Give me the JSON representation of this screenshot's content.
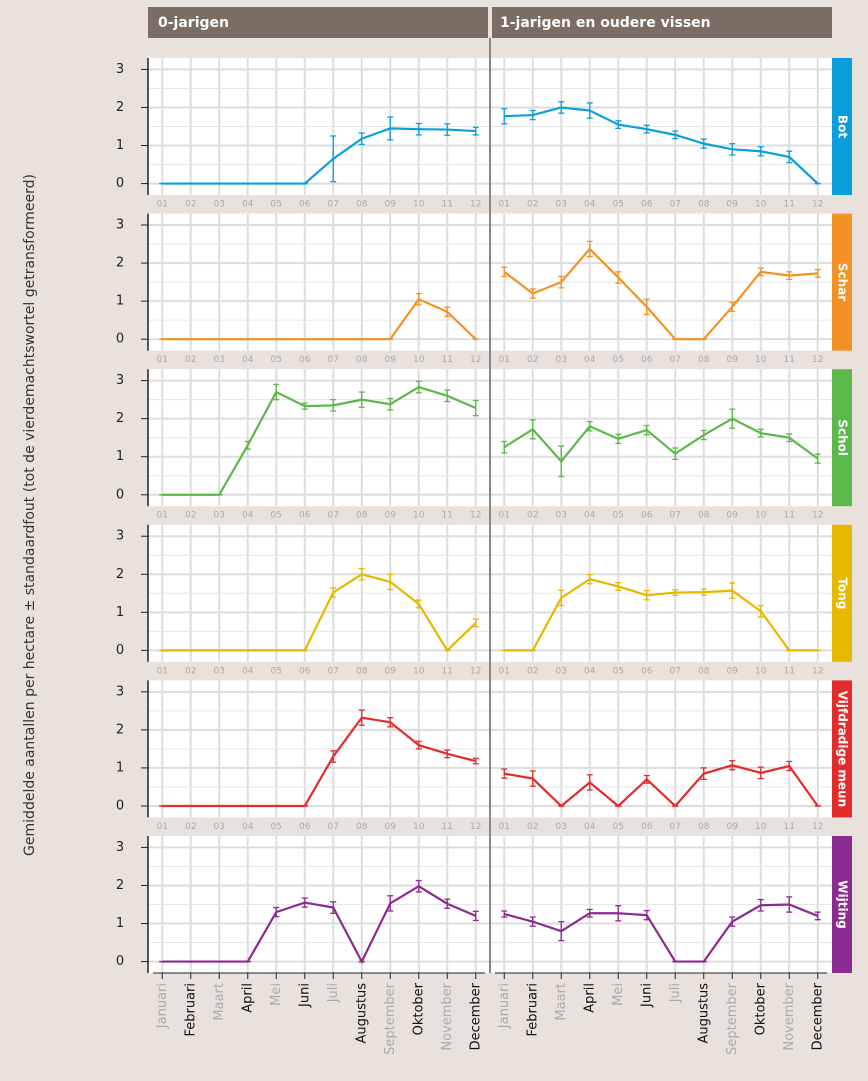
{
  "chart_data": {
    "type": "line",
    "columns": [
      "0-jarigen",
      "1-jarigen en oudere vissen"
    ],
    "y_label": "Gemiddelde aantallen per hectare ± standaardfout (tot de vierdemachtswortel getransformeerd)",
    "categories": [
      "Januari",
      "Februari",
      "Maart",
      "April",
      "Mei",
      "Juni",
      "Juli",
      "Augustus",
      "September",
      "Oktober",
      "November",
      "December"
    ],
    "month_codes": [
      "01",
      "02",
      "03",
      "04",
      "05",
      "06",
      "07",
      "08",
      "09",
      "10",
      "11",
      "12"
    ],
    "ylim": [
      -0.3,
      3.3
    ],
    "yticks": [
      0,
      1,
      2,
      3
    ],
    "grid": true,
    "series": [
      {
        "name": "Bot",
        "color": "#0a9fdc",
        "values": [
          [
            0,
            0,
            0,
            0,
            0,
            0,
            0.65,
            1.18,
            1.45,
            1.43,
            1.42,
            1.38
          ],
          [
            1.77,
            1.8,
            2.0,
            1.92,
            1.55,
            1.43,
            1.28,
            1.05,
            0.9,
            0.85,
            0.7,
            0
          ]
        ],
        "errors": [
          [
            0,
            0,
            0,
            0,
            0,
            0,
            0.6,
            0.15,
            0.3,
            0.15,
            0.15,
            0.1
          ],
          [
            0.2,
            0.12,
            0.15,
            0.2,
            0.1,
            0.1,
            0.1,
            0.12,
            0.15,
            0.12,
            0.15,
            0
          ]
        ]
      },
      {
        "name": "Schar",
        "color": "#f39224",
        "values": [
          [
            0,
            0,
            0,
            0,
            0,
            0,
            0,
            0,
            0,
            1.05,
            0.72,
            0
          ],
          [
            1.77,
            1.2,
            1.5,
            2.37,
            1.62,
            0.85,
            0,
            0,
            0.85,
            1.77,
            1.67,
            1.73
          ]
        ],
        "errors": [
          [
            0,
            0,
            0,
            0,
            0,
            0,
            0,
            0,
            0,
            0.15,
            0.12,
            0
          ],
          [
            0.12,
            0.12,
            0.15,
            0.2,
            0.15,
            0.2,
            0,
            0,
            0.12,
            0.1,
            0.1,
            0.1
          ]
        ]
      },
      {
        "name": "Schol",
        "color": "#5cb84a",
        "values": [
          [
            0,
            0,
            0,
            1.3,
            2.7,
            2.33,
            2.35,
            2.5,
            2.38,
            2.83,
            2.6,
            2.28
          ],
          [
            1.25,
            1.72,
            0.88,
            1.8,
            1.47,
            1.7,
            1.08,
            1.57,
            2.0,
            1.62,
            1.5,
            0.95
          ]
        ],
        "errors": [
          [
            0,
            0,
            0,
            0.1,
            0.2,
            0.08,
            0.15,
            0.2,
            0.15,
            0.15,
            0.15,
            0.2
          ],
          [
            0.15,
            0.25,
            0.4,
            0.12,
            0.12,
            0.12,
            0.15,
            0.12,
            0.25,
            0.1,
            0.1,
            0.12
          ]
        ]
      },
      {
        "name": "Tong",
        "color": "#e6b800",
        "values": [
          [
            0,
            0,
            0,
            0,
            0,
            0,
            1.52,
            2.0,
            1.8,
            1.22,
            0,
            0.72
          ],
          [
            0,
            0,
            1.38,
            1.87,
            1.68,
            1.45,
            1.52,
            1.53,
            1.57,
            1.03,
            0,
            0
          ]
        ],
        "errors": [
          [
            0,
            0,
            0,
            0,
            0,
            0,
            0.12,
            0.15,
            0.2,
            0.1,
            0,
            0.1
          ],
          [
            0,
            0,
            0.2,
            0.12,
            0.1,
            0.12,
            0.07,
            0.08,
            0.2,
            0.15,
            0,
            0
          ]
        ]
      },
      {
        "name": "Vijfdradige meun",
        "color": "#e42b2b",
        "values": [
          [
            0,
            0,
            0,
            0,
            0,
            0,
            1.3,
            2.32,
            2.2,
            1.6,
            1.37,
            1.18
          ],
          [
            0.85,
            0.72,
            0,
            0.62,
            0,
            0.7,
            0,
            0.85,
            1.07,
            0.87,
            1.05,
            0
          ]
        ],
        "errors": [
          [
            0,
            0,
            0,
            0,
            0,
            0,
            0.15,
            0.2,
            0.12,
            0.1,
            0.1,
            0.07
          ],
          [
            0.12,
            0.2,
            0,
            0.2,
            0,
            0.1,
            0,
            0.15,
            0.12,
            0.15,
            0.12,
            0
          ]
        ]
      },
      {
        "name": "Wijting",
        "color": "#8b2a8f",
        "values": [
          [
            0,
            0,
            0,
            0,
            1.3,
            1.55,
            1.42,
            0,
            1.53,
            1.98,
            1.52,
            1.2
          ],
          [
            1.25,
            1.05,
            0.8,
            1.27,
            1.27,
            1.22,
            0,
            0,
            1.05,
            1.48,
            1.5,
            1.2
          ]
        ],
        "errors": [
          [
            0,
            0,
            0,
            0,
            0.12,
            0.12,
            0.15,
            0,
            0.2,
            0.15,
            0.12,
            0.12
          ],
          [
            0.08,
            0.12,
            0.25,
            0.1,
            0.2,
            0.12,
            0,
            0,
            0.12,
            0.15,
            0.2,
            0.1
          ]
        ]
      }
    ]
  }
}
